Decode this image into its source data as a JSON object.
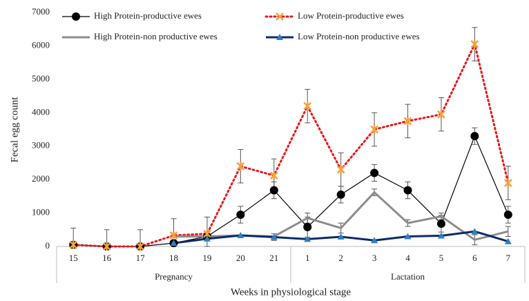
{
  "chart_data": {
    "type": "line",
    "x_label": "Weeks in physiological stage",
    "y_label": "Fecal egg count",
    "categories": [
      "15",
      "16",
      "17",
      "18",
      "19",
      "20",
      "21",
      "1",
      "2",
      "3",
      "4",
      "5",
      "6",
      "7"
    ],
    "groups": [
      {
        "label": "Pregnancy",
        "span": [
          0,
          6
        ]
      },
      {
        "label": "Lactation",
        "span": [
          7,
          13
        ]
      }
    ],
    "ylim": [
      0,
      7000
    ],
    "yticks": [
      0,
      1000,
      2000,
      3000,
      4000,
      5000,
      6000,
      7000
    ],
    "legend": "top",
    "series": [
      {
        "name": "High Protein-productive ewes",
        "color": "#000000",
        "style": "solid",
        "width": 1.2,
        "marker": "circle",
        "values": [
          50,
          0,
          0,
          100,
          300,
          950,
          1680,
          580,
          1550,
          2200,
          1680,
          680,
          3300,
          950
        ],
        "errors": [
          null,
          null,
          null,
          null,
          null,
          250,
          250,
          300,
          250,
          250,
          250,
          250,
          250,
          250
        ]
      },
      {
        "name": "Low Protein-productive ewes",
        "color": "#e8161a",
        "style": "dotted",
        "width": 3,
        "marker": "star",
        "values": [
          50,
          0,
          0,
          330,
          380,
          2400,
          2120,
          4200,
          2300,
          3500,
          3750,
          3950,
          6050,
          1900
        ],
        "errors": [
          500,
          500,
          500,
          500,
          500,
          500,
          500,
          500,
          500,
          500,
          500,
          500,
          500,
          500
        ]
      },
      {
        "name": "High Protein-non productive ewes",
        "color": "#8c8c8c",
        "style": "solid",
        "width": 3,
        "marker": "none",
        "values": [
          null,
          null,
          null,
          300,
          300,
          330,
          300,
          850,
          550,
          1620,
          700,
          900,
          200,
          450
        ],
        "errors": [
          null,
          null,
          null,
          null,
          null,
          null,
          null,
          150,
          150,
          100,
          100,
          100,
          150,
          150
        ]
      },
      {
        "name": "Low Protein-non productive ewes",
        "color": "#0a2a6b",
        "style": "solid",
        "width": 3,
        "marker": "triangle",
        "values": [
          null,
          null,
          null,
          100,
          230,
          330,
          280,
          220,
          290,
          180,
          300,
          320,
          450,
          150
        ],
        "errors": [
          null,
          null,
          null,
          null,
          null,
          null,
          100,
          null,
          null,
          null,
          null,
          null,
          null,
          null
        ]
      }
    ]
  }
}
